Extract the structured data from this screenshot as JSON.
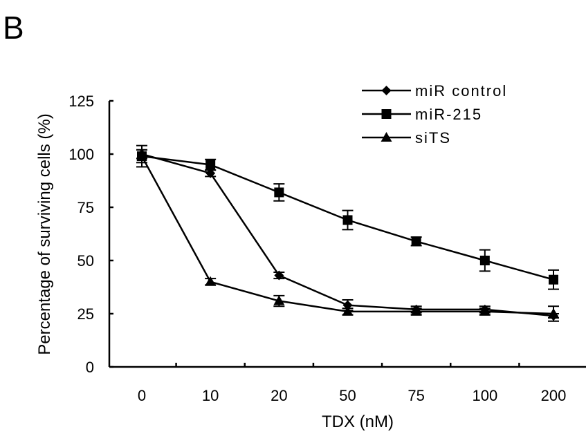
{
  "panel_label": "B",
  "chart_data": {
    "type": "line",
    "xlabel": "TDX (nM)",
    "ylabel": "Percentage of surviving cells (%)",
    "categories": [
      "0",
      "10",
      "20",
      "50",
      "75",
      "100",
      "200"
    ],
    "yticks": [
      "0",
      "25",
      "50",
      "75",
      "100",
      "125"
    ],
    "ylim": [
      0,
      125
    ],
    "legend_position": "top-right",
    "series": [
      {
        "name": "miRcontrol",
        "display_name": "miR control",
        "marker": "diamond",
        "values": [
          100,
          91,
          43,
          29,
          27,
          27,
          24
        ],
        "errors": [
          2,
          1.5,
          1.5,
          2.5,
          1.5,
          1.5,
          1
        ]
      },
      {
        "name": "miR-215",
        "marker": "square",
        "values": [
          99,
          95,
          82,
          69,
          59,
          50,
          41
        ],
        "errors": [
          5,
          2.5,
          4,
          4.5,
          2,
          5,
          4.5
        ]
      },
      {
        "name": "siTS",
        "marker": "triangle",
        "values": [
          99,
          40,
          31,
          26,
          26,
          26,
          25
        ],
        "errors": [
          3,
          1.5,
          2.5,
          1.5,
          1.5,
          1.5,
          3.5
        ]
      }
    ],
    "grid": false
  }
}
